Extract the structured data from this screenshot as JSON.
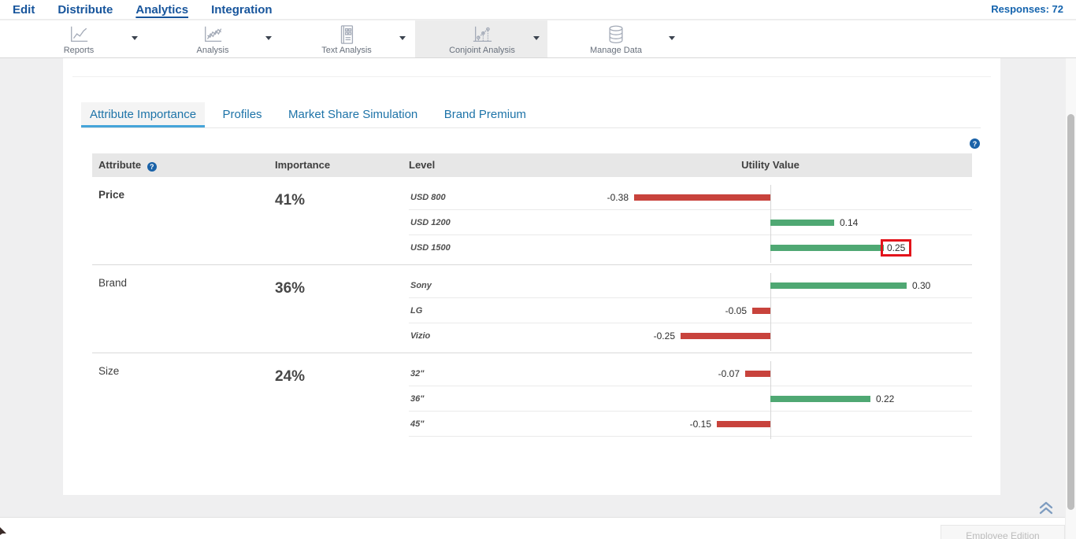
{
  "nav": {
    "items": [
      "Edit",
      "Distribute",
      "Analytics",
      "Integration"
    ],
    "active_item": "Analytics",
    "responses_label": "Responses: 72"
  },
  "toolbar": {
    "items": [
      {
        "label": "Reports",
        "icon": "line-chart-icon",
        "selected": false
      },
      {
        "label": "Analysis",
        "icon": "multi-line-chart-icon",
        "selected": false
      },
      {
        "label": "Text Analysis",
        "icon": "text-report-icon",
        "selected": false
      },
      {
        "label": "Conjoint Analysis",
        "icon": "conjoint-chart-icon",
        "selected": true
      },
      {
        "label": "Manage Data",
        "icon": "database-icon",
        "selected": false
      }
    ]
  },
  "tabs": [
    {
      "label": "Attribute Importance",
      "active": true
    },
    {
      "label": "Profiles",
      "active": false
    },
    {
      "label": "Market Share Simulation",
      "active": false
    },
    {
      "label": "Brand Premium",
      "active": false
    }
  ],
  "help_icon": "?",
  "table": {
    "headers": [
      "Attribute",
      "Importance",
      "Level",
      "Utility Value"
    ],
    "groups": [
      {
        "attribute": "Price",
        "importance": "41%",
        "levels": [
          {
            "label": "USD 800",
            "value": -0.38,
            "value_label": "-0.38",
            "highlighted": false
          },
          {
            "label": "USD 1200",
            "value": 0.14,
            "value_label": "0.14",
            "highlighted": false
          },
          {
            "label": "USD 1500",
            "value": 0.25,
            "value_label": "0.25",
            "highlighted": true
          }
        ]
      },
      {
        "attribute": "Brand",
        "importance": "36%",
        "levels": [
          {
            "label": "Sony",
            "value": 0.3,
            "value_label": "0.30",
            "highlighted": false
          },
          {
            "label": "LG",
            "value": -0.05,
            "value_label": "-0.05",
            "highlighted": false
          },
          {
            "label": "Vizio",
            "value": -0.25,
            "value_label": "-0.25",
            "highlighted": false
          }
        ]
      },
      {
        "attribute": "Size",
        "importance": "24%",
        "levels": [
          {
            "label": "32\"",
            "value": -0.07,
            "value_label": "-0.07",
            "highlighted": false
          },
          {
            "label": "36\"",
            "value": 0.22,
            "value_label": "0.22",
            "highlighted": false
          },
          {
            "label": "45\"",
            "value": -0.15,
            "value_label": "-0.15",
            "highlighted": false
          }
        ]
      }
    ]
  },
  "footer": {
    "edition_label": "Employee Edition"
  },
  "colors": {
    "positive_bar": "#4fa873",
    "negative_bar": "#c8433c",
    "highlight_box": "#e3131b",
    "accent_blue": "#17559c",
    "tab_underline": "#45a4d9"
  }
}
